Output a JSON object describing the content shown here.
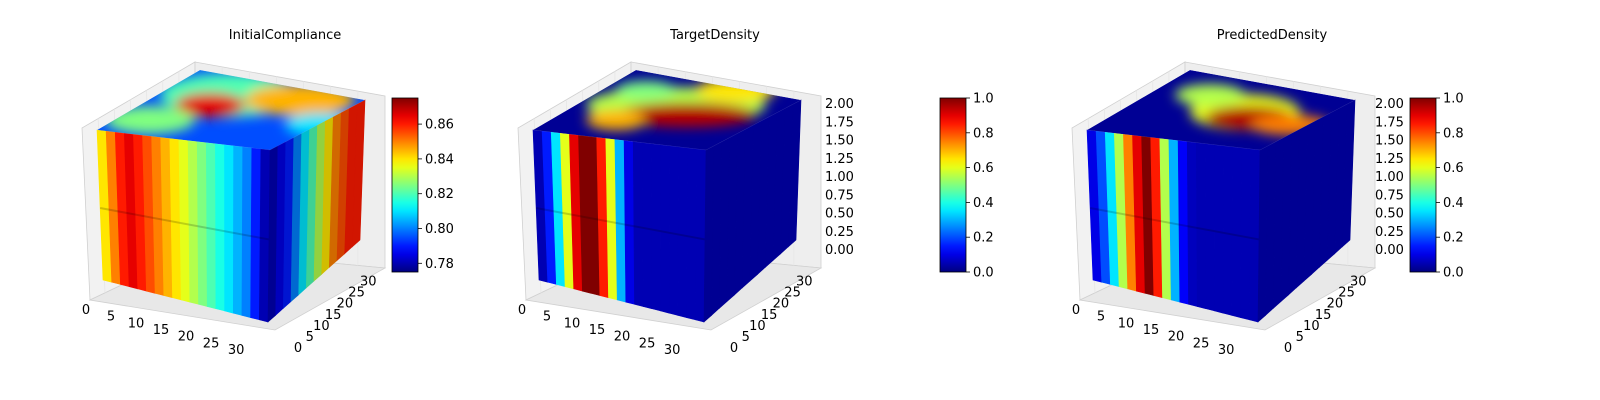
{
  "chart_data": [
    {
      "type": "3d-voxel",
      "title": "InitialCompliance",
      "colormap": "jet",
      "x_ticks": [
        "0",
        "5",
        "10",
        "15",
        "20",
        "25",
        "30"
      ],
      "y_ticks": [
        "0",
        "5",
        "10",
        "15",
        "20",
        "25",
        "30"
      ],
      "z_ticks": [],
      "colorbar": {
        "min": 0.775,
        "max": 0.875,
        "ticks": [
          "0.78",
          "0.80",
          "0.82",
          "0.84",
          "0.86"
        ]
      },
      "front_face_profile": [
        0.84,
        0.85,
        0.86,
        0.865,
        0.86,
        0.855,
        0.85,
        0.845,
        0.84,
        0.835,
        0.83,
        0.825,
        0.82,
        0.815,
        0.81,
        0.805,
        0.8,
        0.79,
        0.78
      ],
      "side_face_profile": [
        0.78,
        0.785,
        0.79,
        0.8,
        0.81,
        0.82,
        0.83,
        0.84,
        0.85,
        0.855,
        0.86,
        0.86
      ]
    },
    {
      "type": "3d-voxel",
      "title": "TargetDensity",
      "colormap": "jet",
      "x_ticks": [
        "0",
        "5",
        "10",
        "15",
        "20",
        "25",
        "30"
      ],
      "y_ticks": [
        "0",
        "5",
        "10",
        "15",
        "20",
        "25",
        "30"
      ],
      "z_ticks": [
        "0.00",
        "0.25",
        "0.50",
        "0.75",
        "1.00",
        "1.25",
        "1.50",
        "1.75",
        "2.00"
      ],
      "colorbar": {
        "min": 0.0,
        "max": 1.0,
        "ticks": [
          "0.0",
          "0.2",
          "0.4",
          "0.6",
          "0.8",
          "1.0"
        ]
      },
      "front_face_profile": [
        0.05,
        0.15,
        0.35,
        0.6,
        0.9,
        1.0,
        1.0,
        0.85,
        0.6,
        0.3,
        0.1,
        0.05,
        0.05,
        0.05,
        0.05,
        0.05,
        0.05,
        0.05,
        0.05
      ],
      "side_face_profile": [
        0.05,
        0.05,
        0.05,
        0.05,
        0.05,
        0.05,
        0.05,
        0.05,
        0.05,
        0.05,
        0.05,
        0.05
      ]
    },
    {
      "type": "3d-voxel",
      "title": "PredictedDensity",
      "colormap": "jet",
      "x_ticks": [
        "0",
        "5",
        "10",
        "15",
        "20",
        "25",
        "30"
      ],
      "y_ticks": [
        "0",
        "5",
        "10",
        "15",
        "20",
        "25",
        "30"
      ],
      "z_ticks": [
        "0.00",
        "0.25",
        "0.50",
        "0.75",
        "1.00",
        "1.25",
        "1.50",
        "1.75",
        "2.00"
      ],
      "colorbar": {
        "min": 0.0,
        "max": 1.0,
        "ticks": [
          "0.0",
          "0.2",
          "0.4",
          "0.6",
          "0.8",
          "1.0"
        ]
      },
      "front_face_profile": [
        0.1,
        0.2,
        0.35,
        0.55,
        0.75,
        0.9,
        1.0,
        0.85,
        0.55,
        0.3,
        0.12,
        0.06,
        0.05,
        0.05,
        0.05,
        0.05,
        0.05,
        0.05,
        0.05
      ],
      "side_face_profile": [
        0.05,
        0.05,
        0.05,
        0.05,
        0.05,
        0.05,
        0.05,
        0.05,
        0.05,
        0.05,
        0.05,
        0.05
      ]
    }
  ]
}
